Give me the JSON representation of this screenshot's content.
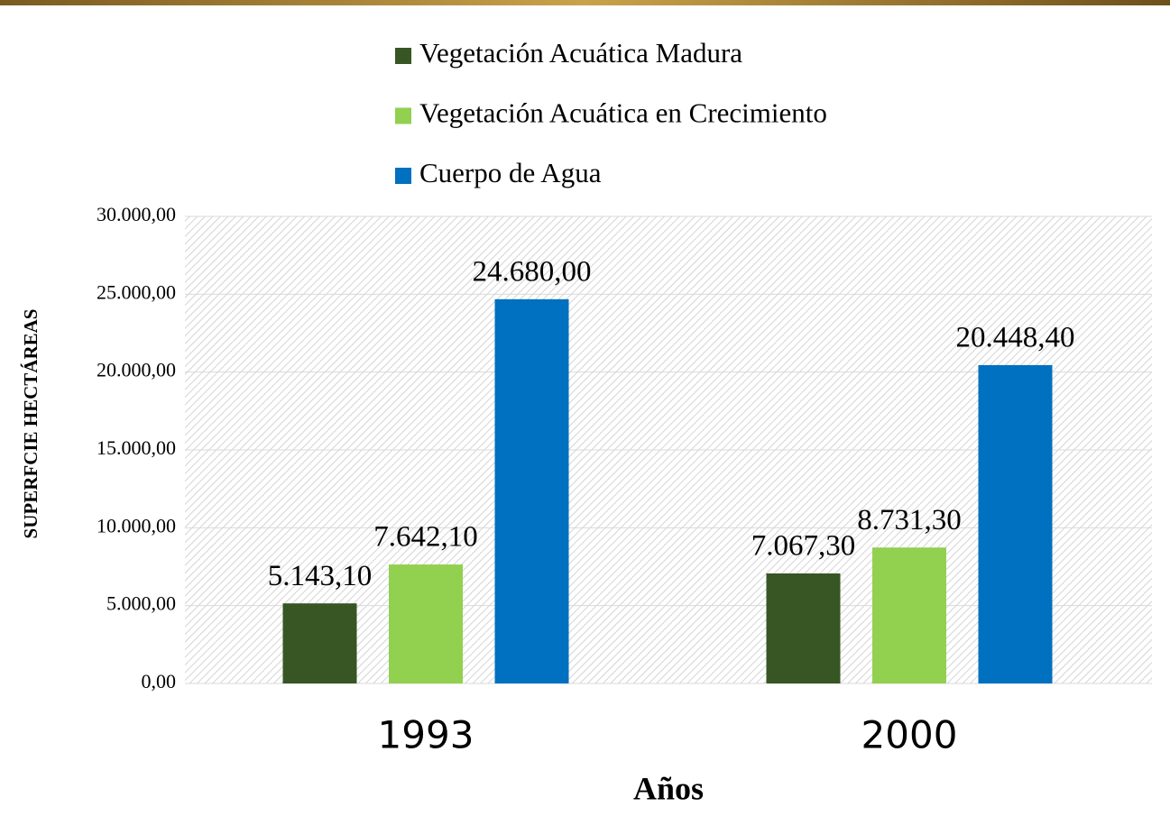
{
  "chart_data": {
    "type": "bar",
    "categories": [
      "1993",
      "2000"
    ],
    "series": [
      {
        "name": "Vegetación Acuática Madura",
        "color": "#375623",
        "values": [
          5143.1,
          7067.3
        ],
        "value_labels": [
          "5.143,10",
          "7.067,30"
        ]
      },
      {
        "name": "Vegetación Acuática en Crecimiento",
        "color": "#92d050",
        "values": [
          7642.1,
          8731.3
        ],
        "value_labels": [
          "7.642,10",
          "8.731,30"
        ]
      },
      {
        "name": "Cuerpo de Agua",
        "color": "#0070c0",
        "values": [
          24680,
          20448.4
        ],
        "value_labels": [
          "24.680,00",
          "20.448,40"
        ]
      }
    ],
    "ylim": [
      0,
      30000
    ],
    "yticks": [
      {
        "value": 0,
        "label": "0,00"
      },
      {
        "value": 5000,
        "label": "5.000,00"
      },
      {
        "value": 10000,
        "label": "10.000,00"
      },
      {
        "value": 15000,
        "label": "15.000,00"
      },
      {
        "value": 20000,
        "label": "20.000,00"
      },
      {
        "value": 25000,
        "label": "25.000,00"
      },
      {
        "value": 30000,
        "label": "30.000,00"
      }
    ],
    "ylabel": "SUPERFCIE HECTÁREAS",
    "xlabel": "Años",
    "grid": true,
    "legend": "top"
  }
}
